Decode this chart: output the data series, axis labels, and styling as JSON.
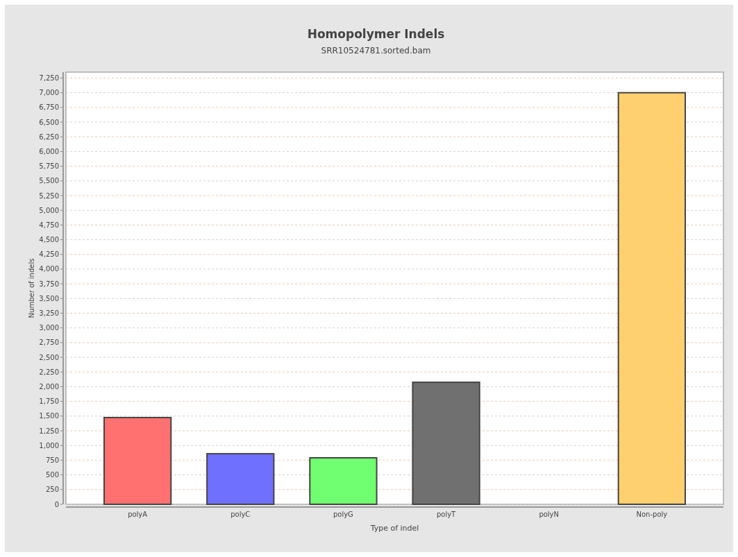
{
  "chart_data": {
    "type": "bar",
    "title": "Homopolymer Indels",
    "subtitle": "SRR10524781.sorted.bam",
    "xlabel": "Type of indel",
    "ylabel": "Number of indels",
    "categories": [
      "polyA",
      "polyC",
      "polyG",
      "polyT",
      "polyN",
      "Non-poly"
    ],
    "values": [
      1475,
      860,
      790,
      2075,
      0,
      7000
    ],
    "colors": [
      "#ff7070",
      "#7070ff",
      "#70ff70",
      "#707070",
      "#404040",
      "#ffd070"
    ],
    "ylim": [
      0,
      7350
    ],
    "yticks": [
      {
        "value": 0,
        "label": "0"
      },
      {
        "value": 250,
        "label": "250"
      },
      {
        "value": 500,
        "label": "500"
      },
      {
        "value": 750,
        "label": "750"
      },
      {
        "value": 1000,
        "label": "1,000"
      },
      {
        "value": 1250,
        "label": "1,250"
      },
      {
        "value": 1500,
        "label": "1,500"
      },
      {
        "value": 1750,
        "label": "1,750"
      },
      {
        "value": 2000,
        "label": "2,000"
      },
      {
        "value": 2250,
        "label": "2,250"
      },
      {
        "value": 2500,
        "label": "2,500"
      },
      {
        "value": 2750,
        "label": "2,750"
      },
      {
        "value": 3000,
        "label": "3,000"
      },
      {
        "value": 3250,
        "label": "3,250"
      },
      {
        "value": 3500,
        "label": "3,500"
      },
      {
        "value": 3750,
        "label": "3,750"
      },
      {
        "value": 4000,
        "label": "4,000"
      },
      {
        "value": 4250,
        "label": "4,250"
      },
      {
        "value": 4500,
        "label": "4,500"
      },
      {
        "value": 4750,
        "label": "4,750"
      },
      {
        "value": 5000,
        "label": "5,000"
      },
      {
        "value": 5250,
        "label": "5,250"
      },
      {
        "value": 5500,
        "label": "5,500"
      },
      {
        "value": 5750,
        "label": "5,750"
      },
      {
        "value": 6000,
        "label": "6,000"
      },
      {
        "value": 6250,
        "label": "6,250"
      },
      {
        "value": 6500,
        "label": "6,500"
      },
      {
        "value": 6750,
        "label": "6,750"
      },
      {
        "value": 7000,
        "label": "7,000"
      },
      {
        "value": 7250,
        "label": "7,250"
      }
    ],
    "grid": "y"
  }
}
